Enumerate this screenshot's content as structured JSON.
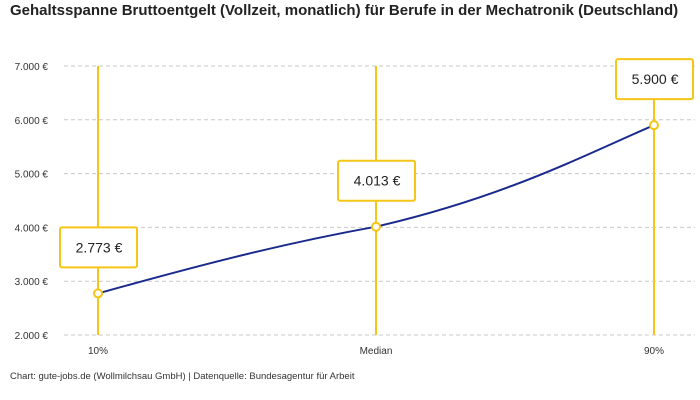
{
  "title": "Gehaltsspanne Bruttoentgelt (Vollzeit, monatlich) für Berufe in der Mechatronik (Deutschland)",
  "source": "Chart: gute-jobs.de (Wollmilchsau GmbH) | Datenquelle: Bundesagentur für Arbeit",
  "chart_data": {
    "type": "line",
    "title": "Gehaltsspanne Bruttoentgelt (Vollzeit, monatlich) für Berufe in der Mechatronik (Deutschland)",
    "categories": [
      "10%",
      "Median",
      "90%"
    ],
    "values": [
      2773,
      4013,
      5900
    ],
    "data_labels": [
      "2.773 €",
      "4.013 €",
      "5.900 €"
    ],
    "ylim": [
      2000,
      7000
    ],
    "yticks": [
      2000,
      3000,
      4000,
      5000,
      6000,
      7000
    ],
    "ytick_labels": [
      "2.000 €",
      "3.000 €",
      "4.000 €",
      "5.000 €",
      "6.000 €",
      "7.000 €"
    ],
    "grid": true,
    "legend": "none",
    "colors": {
      "line": "#1a2a8c",
      "marker": "#f5c518",
      "grid": "#c8c8c8"
    }
  }
}
